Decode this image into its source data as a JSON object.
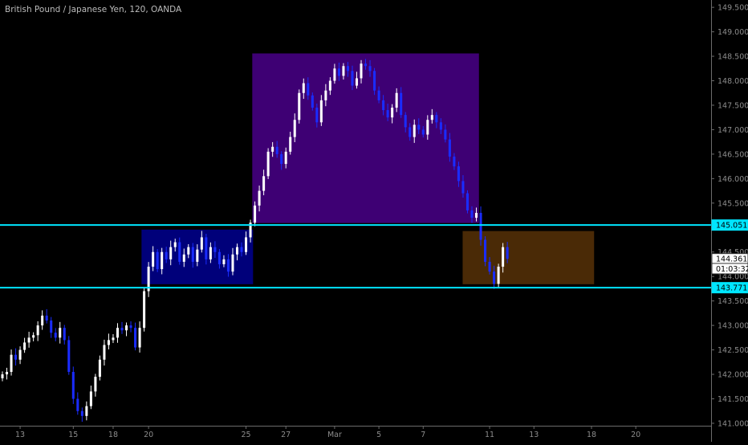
{
  "symbol_title": "British Pound / Japanese Yen, 120, OANDA",
  "colors": {
    "background": "#000000",
    "axis_line": "#6b6b6b",
    "tick_text": "#8c8c8c",
    "candle_up": "#ffffff",
    "candle_down": "#1a2cff",
    "level_line": "#00e5ff",
    "zone_consolidation": "#00007a",
    "zone_rally": "#3e0074",
    "zone_retest": "#4a2a06"
  },
  "chart_data": {
    "type": "candlestick",
    "title": "British Pound / Japanese Yen, 120, OANDA",
    "ylim": [
      140.95,
      149.65
    ],
    "y_ticks": [
      "141.000",
      "141.500",
      "142.000",
      "142.500",
      "143.000",
      "143.500",
      "144.000",
      "144.500",
      "145.000",
      "145.500",
      "146.000",
      "146.500",
      "147.000",
      "147.500",
      "148.000",
      "148.500",
      "149.000",
      "149.500"
    ],
    "x_ticks": [
      "13",
      "15",
      "18",
      "20",
      "25",
      "27",
      "Mar",
      "5",
      "7",
      "11",
      "13",
      "18",
      "20"
    ],
    "x_tick_index": [
      4,
      16,
      25,
      33,
      55,
      64,
      75,
      85,
      95,
      110,
      120,
      133,
      143
    ],
    "index_range": [
      0,
      160
    ],
    "price_labels": [
      {
        "name": "level-upper",
        "text": "145.051",
        "value": 145.051,
        "style": "level"
      },
      {
        "name": "last-price",
        "text": "144.361",
        "value": 144.361,
        "style": "white"
      },
      {
        "name": "countdown",
        "text": "01:03:32",
        "value": 144.16,
        "style": "white"
      },
      {
        "name": "level-lower",
        "text": "143.771",
        "value": 143.771,
        "style": "level"
      }
    ],
    "horizontal_levels": [
      145.051,
      143.771
    ],
    "zones": [
      {
        "name": "consolidation-zone",
        "x0": 31.5,
        "x1": 56.5,
        "y_top": 144.95,
        "y_bottom": 143.85,
        "color": "#00007a"
      },
      {
        "name": "rally-zone",
        "x0": 56.5,
        "x1": 107.5,
        "y_top": 148.55,
        "y_bottom": 145.1,
        "color": "#3e0074"
      },
      {
        "name": "retest-zone",
        "x0": 104,
        "x1": 133.5,
        "y_top": 144.92,
        "y_bottom": 143.85,
        "color": "#4a2a06"
      }
    ],
    "close": [
      142.0,
      142.05,
      142.4,
      142.3,
      142.5,
      142.65,
      142.75,
      142.8,
      143.0,
      143.2,
      143.1,
      142.85,
      142.75,
      142.95,
      142.7,
      142.05,
      141.5,
      141.25,
      141.15,
      141.35,
      141.65,
      141.95,
      142.3,
      142.6,
      142.7,
      142.75,
      142.95,
      142.9,
      143.0,
      142.95,
      142.55,
      142.95,
      143.7,
      144.2,
      144.5,
      144.15,
      144.5,
      144.35,
      144.6,
      144.7,
      144.3,
      144.45,
      144.6,
      144.3,
      144.55,
      144.8,
      144.35,
      144.6,
      144.5,
      144.25,
      144.35,
      144.1,
      144.45,
      144.6,
      144.5,
      144.8,
      145.1,
      145.45,
      145.75,
      146.05,
      146.55,
      146.65,
      146.5,
      146.3,
      146.55,
      146.85,
      147.2,
      147.75,
      147.95,
      147.7,
      147.45,
      147.15,
      147.6,
      147.8,
      148.0,
      148.25,
      148.1,
      148.3,
      148.2,
      147.9,
      148.05,
      148.35,
      148.3,
      148.2,
      147.8,
      147.6,
      147.4,
      147.25,
      147.45,
      147.75,
      147.3,
      147.05,
      146.85,
      147.1,
      147.0,
      146.9,
      147.2,
      147.3,
      147.15,
      147.0,
      146.8,
      146.45,
      146.25,
      145.95,
      145.7,
      145.35,
      145.2,
      145.3,
      144.75,
      144.3,
      144.1,
      143.85,
      144.2,
      144.6,
      144.361
    ]
  }
}
